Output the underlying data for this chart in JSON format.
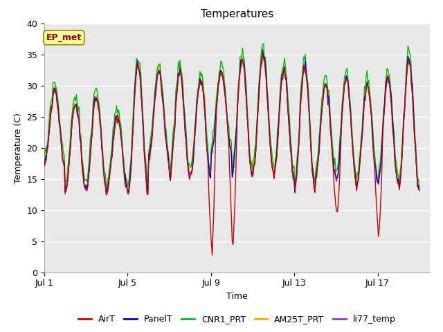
{
  "title": "Temperatures",
  "xlabel": "Time",
  "ylabel": "Temperature (C)",
  "ylim": [
    0,
    40
  ],
  "xlim_days": [
    0,
    18.5
  ],
  "x_ticks_days": [
    0,
    4,
    8,
    12,
    16
  ],
  "x_tick_labels": [
    "Jul 1",
    "Jul 5",
    "Jul 9",
    "Jul 13",
    "Jul 17"
  ],
  "annotation_text": "EP_met",
  "annotation_bbox_facecolor": "#ffff99",
  "annotation_bbox_edgecolor": "#888800",
  "plot_bg_color": "#e8e8e8",
  "fig_bg_color": "#ffffff",
  "series_colors": {
    "AirT": "#cc0000",
    "PanelT": "#0000cc",
    "CNR1_PRT": "#00bb00",
    "AM25T_PRT": "#ffaa00",
    "li77_temp": "#9933cc"
  },
  "series_lw": 1.0,
  "grid_color": "#ffffff",
  "grid_lw": 1.0,
  "title_fontsize": 11,
  "label_fontsize": 9,
  "tick_fontsize": 9,
  "legend_fontsize": 9
}
